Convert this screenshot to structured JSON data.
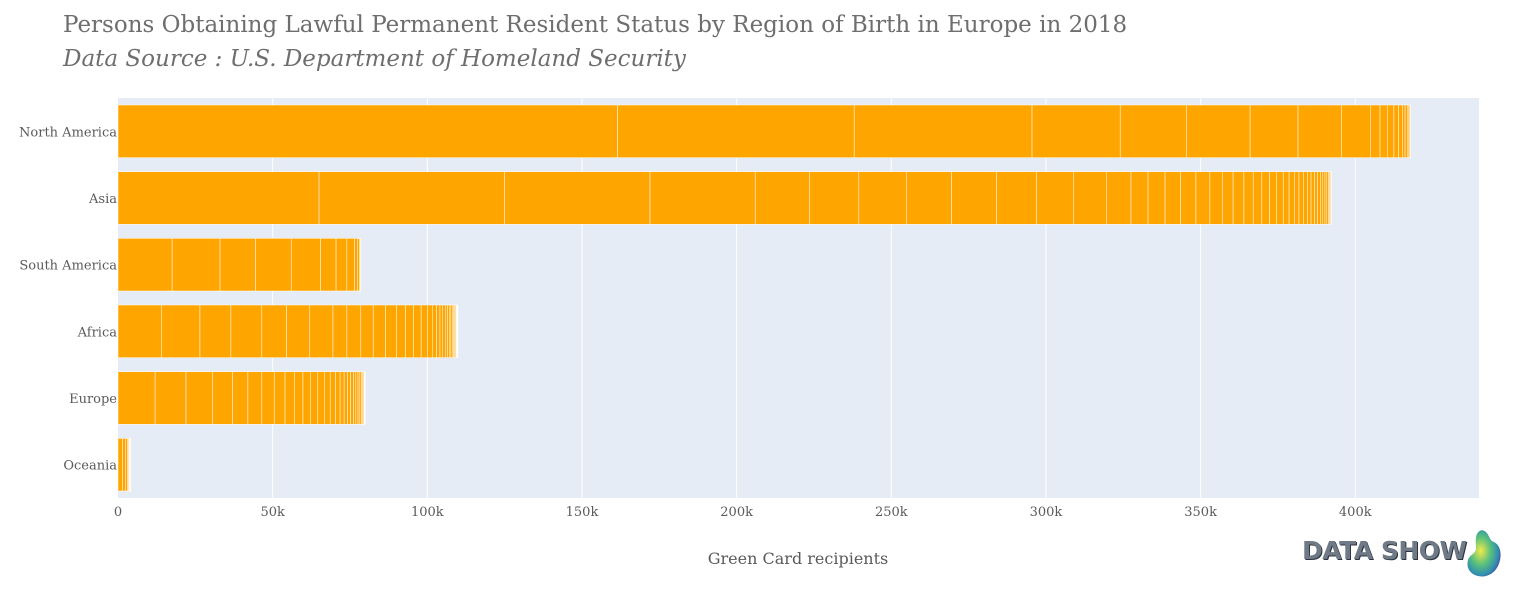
{
  "chart_data": {
    "type": "bar",
    "orientation": "horizontal",
    "title": "Persons Obtaining Lawful Permanent Resident Status by Region of Birth in Europe in 2018",
    "subtitle": "Data Source : U.S. Department of Homeland Security",
    "xlabel": "Green Card recipients",
    "ylabel": "",
    "xlim": [
      0,
      440000
    ],
    "xticks": [
      0,
      50000,
      100000,
      150000,
      200000,
      250000,
      300000,
      350000,
      400000
    ],
    "xtick_labels": [
      "0",
      "50k",
      "100k",
      "150k",
      "200k",
      "250k",
      "300k",
      "350k",
      "400k"
    ],
    "grid": true,
    "bar_color": "#FFA500",
    "plot_bgcolor": "#E5ECF6",
    "categories": [
      "Oceania",
      "Europe",
      "Africa",
      "South America",
      "Asia",
      "North America"
    ],
    "segments": [
      [
        1500,
        1000,
        600,
        300,
        200,
        150,
        100,
        80,
        50,
        40
      ],
      [
        12000,
        10000,
        8500,
        6500,
        5000,
        4500,
        4000,
        3500,
        3000,
        2800,
        2500,
        2300,
        2100,
        1900,
        1700,
        1500,
        1300,
        1100,
        1000,
        900,
        800,
        700,
        600,
        500,
        400,
        300,
        200,
        150,
        100,
        50
      ],
      [
        14000,
        12500,
        10000,
        10000,
        8000,
        7500,
        7500,
        4500,
        4500,
        4000,
        4000,
        3500,
        3000,
        2500,
        2500,
        2000,
        1600,
        1400,
        1100,
        900,
        800,
        700,
        600,
        500,
        450,
        400,
        350,
        300,
        250,
        200,
        150,
        100,
        50
      ],
      [
        17500,
        15500,
        11500,
        11500,
        9500,
        5000,
        3500,
        2500,
        1000,
        500,
        300,
        200
      ],
      [
        65000,
        60000,
        47000,
        34000,
        17500,
        16000,
        15500,
        14500,
        14500,
        13000,
        12000,
        10500,
        8000,
        5500,
        5500,
        5000,
        5000,
        4500,
        4000,
        3500,
        3500,
        3000,
        2800,
        2500,
        2300,
        2100,
        1900,
        1700,
        1500,
        1400,
        1300,
        1200,
        1100,
        1000,
        900,
        800,
        700,
        600,
        500,
        400,
        300,
        200,
        100
      ],
      [
        161500,
        76500,
        57500,
        28500,
        21500,
        20500,
        15500,
        14000,
        9500,
        3000,
        2500,
        2000,
        1500,
        1200,
        900,
        700,
        500,
        300,
        200,
        100
      ]
    ]
  },
  "brand": {
    "logo_text": "DATA SHOW"
  }
}
